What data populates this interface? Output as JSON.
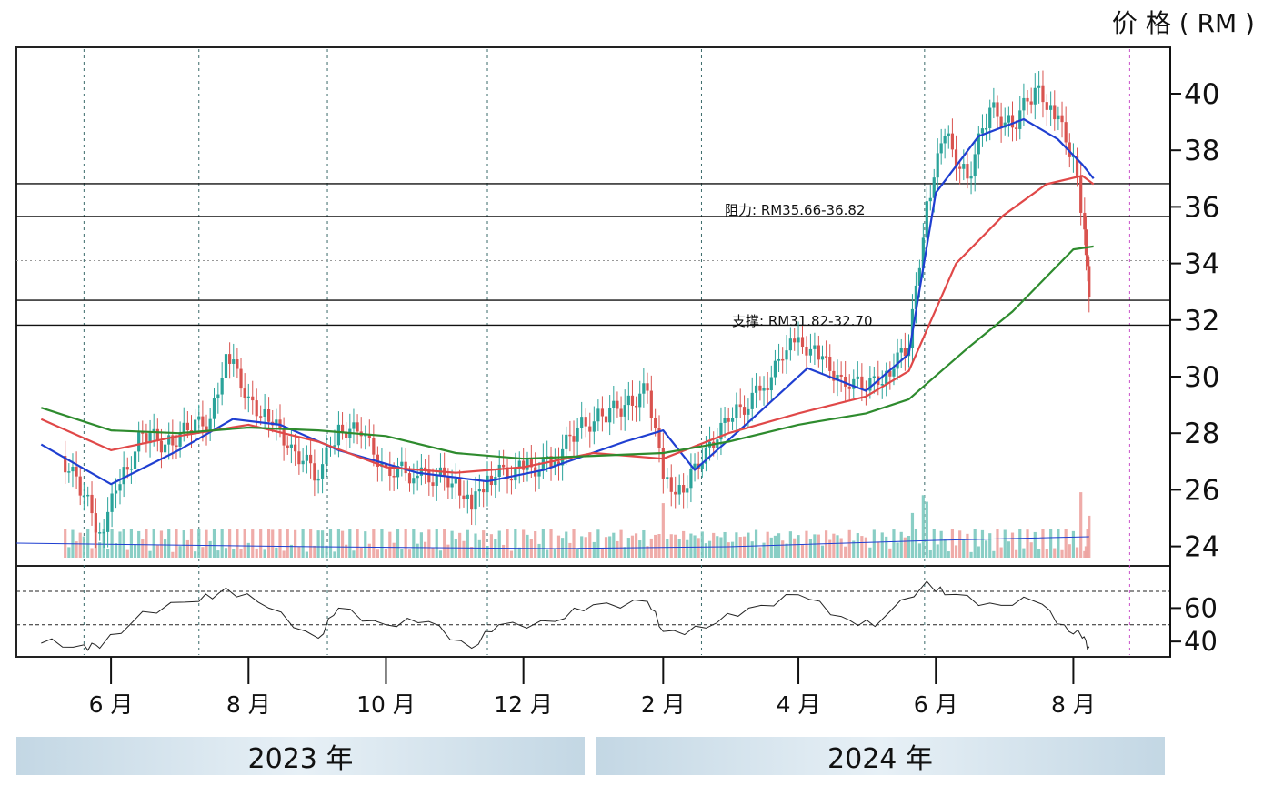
{
  "price_unit": "价 格 ( RM )",
  "colors": {
    "up_candle": "#2aa39a",
    "down_candle": "#d9534f",
    "ma_blue": "#1f3fd1",
    "ma_red": "#e04848",
    "ma_green": "#2e8b2e",
    "rsi_line": "#222222"
  },
  "year_bands": [
    {
      "label": "2023 年"
    },
    {
      "label": "2024 年"
    }
  ],
  "chart_data": [
    {
      "type": "candlestick",
      "ylabel": "价 格 ( RM )",
      "ylim": [
        23.6,
        41.7
      ],
      "yticks": [
        24,
        26,
        28,
        30,
        32,
        34,
        36,
        38,
        40
      ],
      "xticks": [
        "6 月",
        "8 月",
        "10 月",
        "12 月",
        "2 月",
        "4 月",
        "6 月",
        "8 月"
      ],
      "grid": "vertical dashed at month boundaries",
      "annotations": [
        {
          "text": "阻力: RM35.66-36.82",
          "levels": [
            35.66,
            36.82
          ]
        },
        {
          "text": "支撑: RM31.82-32.70",
          "levels": [
            31.82,
            32.7
          ]
        }
      ],
      "close_series": {
        "dates": [
          "2023-05-10",
          "2023-05-20",
          "2023-05-27",
          "2023-06-05",
          "2023-06-15",
          "2023-06-25",
          "2023-07-05",
          "2023-07-15",
          "2023-07-22",
          "2023-08-01",
          "2023-08-10",
          "2023-08-20",
          "2023-09-01",
          "2023-09-10",
          "2023-09-20",
          "2023-10-01",
          "2023-10-15",
          "2023-11-01",
          "2023-11-08",
          "2023-11-15",
          "2023-12-01",
          "2023-12-15",
          "2023-12-25",
          "2024-01-05",
          "2024-01-15",
          "2024-01-25",
          "2024-02-01",
          "2024-02-10",
          "2024-02-20",
          "2024-03-01",
          "2024-03-15",
          "2024-03-25",
          "2024-04-01",
          "2024-04-10",
          "2024-04-20",
          "2024-05-01",
          "2024-05-10",
          "2024-05-20",
          "2024-05-28",
          "2024-06-05",
          "2024-06-15",
          "2024-06-25",
          "2024-07-05",
          "2024-07-15",
          "2024-07-22",
          "2024-08-01",
          "2024-08-06",
          "2024-08-08"
        ],
        "close": [
          27.2,
          25.8,
          24.5,
          26.2,
          28.0,
          27.6,
          28.1,
          28.5,
          30.8,
          29.3,
          28.4,
          27.6,
          26.4,
          28.3,
          27.9,
          26.8,
          26.5,
          26.4,
          25.3,
          26.5,
          26.7,
          27.0,
          28.2,
          28.6,
          29.0,
          29.5,
          26.4,
          25.9,
          27.5,
          28.4,
          29.5,
          30.6,
          31.4,
          30.6,
          30.0,
          29.5,
          30.2,
          31.0,
          36.2,
          38.5,
          37.0,
          39.5,
          38.8,
          40.2,
          39.6,
          37.8,
          35.2,
          32.8
        ]
      },
      "ma_series": [
        {
          "name": "",
          "color": "#1f3fd1",
          "x": [
            "2023-05-01",
            "2023-06-01",
            "2023-07-01",
            "2023-07-25",
            "2023-08-15",
            "2023-09-10",
            "2023-10-15",
            "2023-11-15",
            "2023-12-10",
            "2024-01-15",
            "2024-02-01",
            "2024-02-15",
            "2024-03-10",
            "2024-04-05",
            "2024-05-01",
            "2024-05-20",
            "2024-06-01",
            "2024-06-20",
            "2024-07-10",
            "2024-07-25",
            "2024-08-05",
            "2024-08-10"
          ],
          "y": [
            27.6,
            26.2,
            27.4,
            28.5,
            28.3,
            27.4,
            26.6,
            26.3,
            26.7,
            27.7,
            28.1,
            26.7,
            28.4,
            30.3,
            29.5,
            30.8,
            36.5,
            38.5,
            39.1,
            38.4,
            37.5,
            37.0
          ]
        },
        {
          "name": "",
          "color": "#e04848",
          "x": [
            "2023-05-01",
            "2023-06-01",
            "2023-07-01",
            "2023-08-01",
            "2023-09-01",
            "2023-10-01",
            "2023-11-01",
            "2023-12-01",
            "2024-01-01",
            "2024-02-01",
            "2024-03-01",
            "2024-04-01",
            "2024-05-01",
            "2024-05-20",
            "2024-06-10",
            "2024-07-01",
            "2024-07-20",
            "2024-08-05",
            "2024-08-10"
          ],
          "y": [
            28.5,
            27.4,
            27.9,
            28.3,
            27.7,
            26.8,
            26.6,
            26.8,
            27.3,
            27.1,
            28.0,
            28.7,
            29.3,
            30.2,
            34.0,
            35.7,
            36.8,
            37.1,
            36.8
          ]
        },
        {
          "name": "",
          "color": "#2e8b2e",
          "x": [
            "2023-05-01",
            "2023-06-01",
            "2023-07-01",
            "2023-08-01",
            "2023-09-01",
            "2023-10-01",
            "2023-11-01",
            "2023-12-01",
            "2024-01-01",
            "2024-02-01",
            "2024-03-01",
            "2024-04-01",
            "2024-05-01",
            "2024-05-20",
            "2024-06-15",
            "2024-07-05",
            "2024-08-01",
            "2024-08-10"
          ],
          "y": [
            28.9,
            28.1,
            28.0,
            28.2,
            28.1,
            27.9,
            27.3,
            27.1,
            27.2,
            27.3,
            27.7,
            28.3,
            28.7,
            29.2,
            31.0,
            32.3,
            34.5,
            34.6
          ]
        }
      ]
    },
    {
      "type": "line",
      "yticks": [
        40,
        60
      ],
      "ylim": [
        33,
        82
      ],
      "reference_levels": [
        50,
        70
      ],
      "x": [
        "2023-05-01",
        "2023-05-20",
        "2023-05-27",
        "2023-06-15",
        "2023-07-10",
        "2023-07-22",
        "2023-08-10",
        "2023-09-01",
        "2023-09-10",
        "2023-10-01",
        "2023-10-20",
        "2023-11-08",
        "2023-11-20",
        "2023-12-15",
        "2024-01-01",
        "2024-01-25",
        "2024-02-01",
        "2024-02-20",
        "2024-03-10",
        "2024-04-01",
        "2024-04-20",
        "2024-05-05",
        "2024-05-28",
        "2024-06-05",
        "2024-06-25",
        "2024-07-15",
        "2024-07-28",
        "2024-08-05",
        "2024-08-08"
      ],
      "y": [
        39,
        38,
        36,
        58,
        64,
        72,
        60,
        42,
        60,
        50,
        52,
        36,
        50,
        52,
        62,
        64,
        46,
        48,
        60,
        68,
        55,
        49,
        76,
        68,
        63,
        64,
        50,
        42,
        37
      ]
    }
  ]
}
